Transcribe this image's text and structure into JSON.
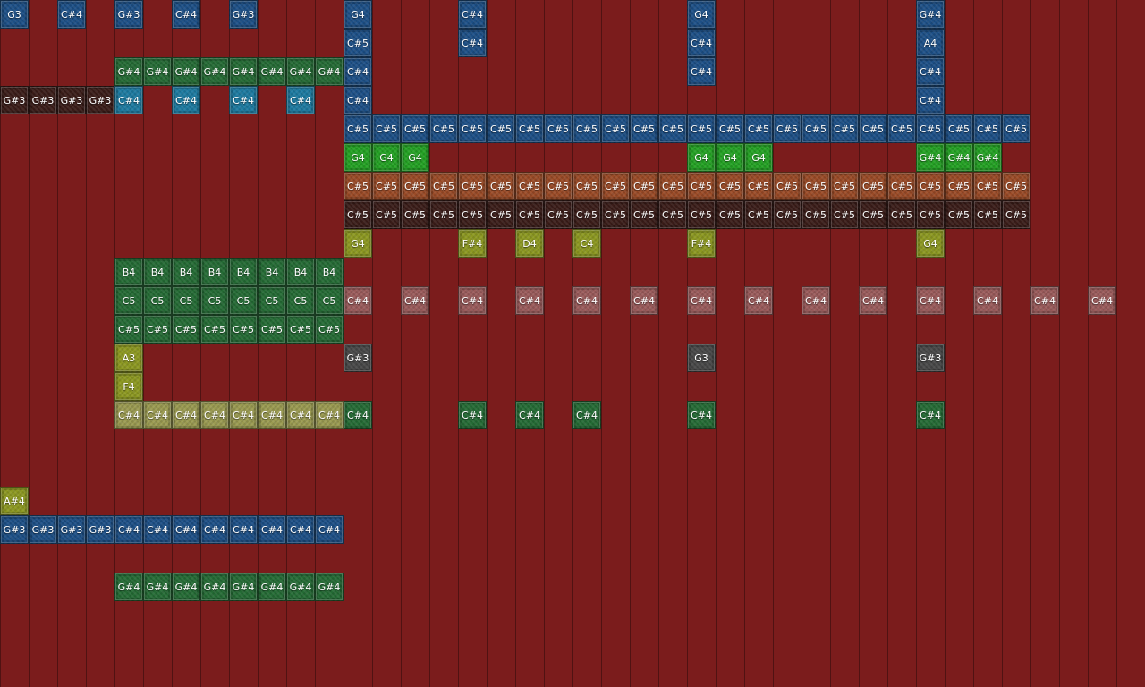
{
  "palette": {
    "background": "#7b1c1c",
    "blue": "#1c4f86",
    "teal": "#1c7aa0",
    "green": "#246b34",
    "bright_green": "#23a123",
    "brown": "#9a4a26",
    "dark": "#3a1c18",
    "olive": "#8c9820",
    "pale": "#9a9a50",
    "pink": "#9a5a5a",
    "gray": "#474747"
  },
  "notes": [
    {
      "label": "G3",
      "color": "blue",
      "row": 0,
      "cols": [
        0
      ]
    },
    {
      "label": "C#4",
      "color": "blue",
      "row": 0,
      "cols": [
        2,
        6,
        16,
        24
      ]
    },
    {
      "label": "G#3",
      "color": "blue",
      "row": 0,
      "cols": [
        4,
        8
      ]
    },
    {
      "label": "G4",
      "color": "blue",
      "row": 0,
      "cols": [
        12,
        24
      ]
    },
    {
      "label": "G#4",
      "color": "blue",
      "row": 0,
      "cols": [
        32
      ]
    },
    {
      "label": "C#5",
      "color": "blue",
      "row": 1,
      "cols": [
        12
      ]
    },
    {
      "label": "C#4",
      "color": "blue",
      "row": 1,
      "cols": [
        16,
        24
      ]
    },
    {
      "label": "A4",
      "color": "blue",
      "row": 1,
      "cols": [
        32
      ]
    },
    {
      "label": "G#4",
      "color": "green",
      "row": 2,
      "cols": [
        4,
        5,
        6,
        7,
        8,
        9,
        10,
        11
      ]
    },
    {
      "label": "C#4",
      "color": "blue",
      "row": 2,
      "cols": [
        12,
        24,
        32
      ]
    },
    {
      "label": "G#3",
      "color": "dark",
      "row": 3,
      "cols": [
        0,
        1,
        2,
        3
      ]
    },
    {
      "label": "C#4",
      "color": "teal",
      "row": 3,
      "cols": [
        4,
        6,
        8,
        10
      ]
    },
    {
      "label": "C#4",
      "color": "blue",
      "row": 3,
      "cols": [
        12,
        32
      ]
    },
    {
      "label": "C#5",
      "color": "blue",
      "row": 4,
      "cols": [
        12,
        13,
        14,
        15,
        16,
        17,
        18,
        19,
        20,
        21,
        22,
        23,
        24,
        25,
        26,
        27,
        28,
        29,
        30,
        31,
        32,
        33,
        34,
        35
      ]
    },
    {
      "label": "G4",
      "color": "bright_green",
      "row": 5,
      "cols": [
        12,
        13,
        14,
        24,
        25,
        26
      ]
    },
    {
      "label": "G#4",
      "color": "bright_green",
      "row": 5,
      "cols": [
        32,
        33,
        34
      ]
    },
    {
      "label": "C#5",
      "color": "brown",
      "row": 6,
      "cols": [
        12,
        13,
        14,
        15,
        16,
        17,
        18,
        19,
        20,
        21,
        22,
        23,
        24,
        25,
        26,
        27,
        28,
        29,
        30,
        31,
        32,
        33,
        34,
        35
      ]
    },
    {
      "label": "C#5",
      "color": "dark",
      "row": 7,
      "cols": [
        12,
        13,
        14,
        15,
        16,
        17,
        18,
        19,
        20,
        21,
        22,
        23,
        24,
        25,
        26,
        27,
        28,
        29,
        30,
        31,
        32,
        33,
        34,
        35
      ]
    },
    {
      "label": "G4",
      "color": "olive",
      "row": 8,
      "cols": [
        12,
        32
      ]
    },
    {
      "label": "F#4",
      "color": "olive",
      "row": 8,
      "cols": [
        16,
        24
      ]
    },
    {
      "label": "D4",
      "color": "olive",
      "row": 8,
      "cols": [
        18
      ]
    },
    {
      "label": "C4",
      "color": "olive",
      "row": 8,
      "cols": [
        20
      ]
    },
    {
      "label": "B4",
      "color": "green",
      "row": 9,
      "cols": [
        4,
        5,
        6,
        7,
        8,
        9,
        10,
        11
      ]
    },
    {
      "label": "C5",
      "color": "green",
      "row": 10,
      "cols": [
        4,
        5,
        6,
        7,
        8,
        9,
        10,
        11
      ]
    },
    {
      "label": "C#4",
      "color": "pink",
      "row": 10,
      "cols": [
        12,
        14,
        16,
        18,
        20,
        22,
        24,
        26,
        28,
        30,
        32,
        34,
        36,
        38
      ]
    },
    {
      "label": "C#5",
      "color": "green",
      "row": 11,
      "cols": [
        4,
        5,
        6,
        7,
        8,
        9,
        10,
        11
      ]
    },
    {
      "label": "A3",
      "color": "olive",
      "row": 12,
      "cols": [
        4
      ]
    },
    {
      "label": "G#3",
      "color": "gray",
      "row": 12,
      "cols": [
        12,
        32
      ]
    },
    {
      "label": "G3",
      "color": "gray",
      "row": 12,
      "cols": [
        24
      ]
    },
    {
      "label": "F4",
      "color": "olive",
      "row": 13,
      "cols": [
        4
      ]
    },
    {
      "label": "C#4",
      "color": "pale",
      "row": 14,
      "cols": [
        4,
        5,
        6,
        7,
        8,
        9,
        10,
        11
      ]
    },
    {
      "label": "C#4",
      "color": "green",
      "row": 14,
      "cols": [
        12,
        16,
        18,
        20,
        24,
        32
      ]
    },
    {
      "label": "A#4",
      "color": "olive",
      "row": 17,
      "cols": [
        0
      ]
    },
    {
      "label": "G#3",
      "color": "blue",
      "row": 18,
      "cols": [
        0,
        1,
        2,
        3
      ]
    },
    {
      "label": "C#4",
      "color": "blue",
      "row": 18,
      "cols": [
        4,
        5,
        6,
        7,
        8,
        9,
        10,
        11
      ]
    },
    {
      "label": "G#4",
      "color": "green",
      "row": 20,
      "cols": [
        4,
        5,
        6,
        7,
        8,
        9,
        10,
        11
      ]
    }
  ]
}
